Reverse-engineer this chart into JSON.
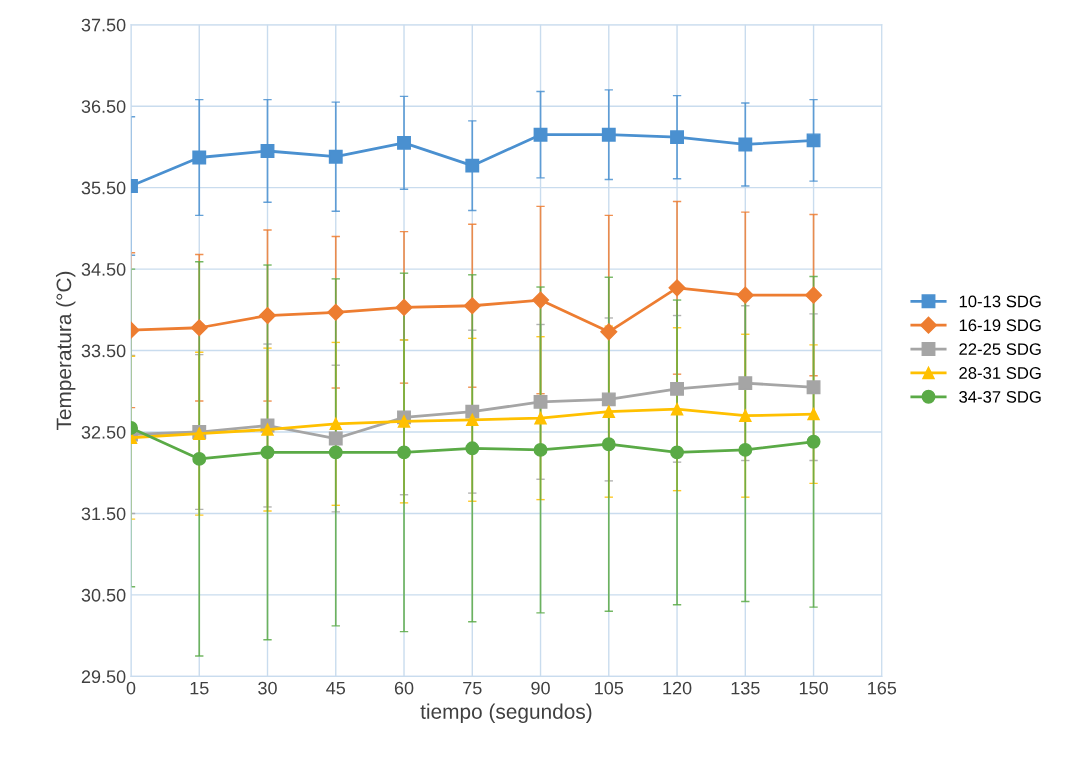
{
  "chart_data": {
    "type": "line",
    "xlabel": "tiempo (segundos)",
    "ylabel": "Temperatura (°C)",
    "x": [
      0,
      15,
      30,
      45,
      60,
      75,
      90,
      105,
      120,
      135,
      150
    ],
    "xlim": [
      0,
      165
    ],
    "xticks": [
      0,
      15,
      30,
      45,
      60,
      75,
      90,
      105,
      120,
      135,
      150,
      165
    ],
    "ylim": [
      29.5,
      37.5
    ],
    "yticks": [
      {
        "value": 29.5,
        "label": "29.50"
      },
      {
        "value": 30.5,
        "label": "30.50"
      },
      {
        "value": 31.5,
        "label": "31.50"
      },
      {
        "value": 32.5,
        "label": "32.50"
      },
      {
        "value": 33.5,
        "label": "33.50"
      },
      {
        "value": 34.5,
        "label": "34.50"
      },
      {
        "value": 35.5,
        "label": "35.50"
      },
      {
        "value": 36.5,
        "label": "36.50"
      },
      {
        "value": 37.5,
        "label": "37.50"
      }
    ],
    "grid": true,
    "legend": "right",
    "series": [
      {
        "name": "10-13 SDG",
        "color": "#4a90d0",
        "marker": "square",
        "values": [
          35.52,
          35.87,
          35.95,
          35.88,
          36.05,
          35.77,
          36.15,
          36.15,
          36.12,
          36.03,
          36.08
        ],
        "errors": [
          0.85,
          0.71,
          0.63,
          0.67,
          0.57,
          0.55,
          0.53,
          0.55,
          0.51,
          0.51,
          0.5
        ]
      },
      {
        "name": "16-19 SDG",
        "color": "#ed7d31",
        "marker": "diamond",
        "values": [
          33.75,
          33.78,
          33.93,
          33.97,
          34.03,
          34.05,
          34.12,
          33.73,
          34.27,
          34.18,
          34.18
        ],
        "errors": [
          0.95,
          0.9,
          1.05,
          0.93,
          0.93,
          1.0,
          1.15,
          1.43,
          1.06,
          1.02,
          0.99
        ]
      },
      {
        "name": "22-25 SDG",
        "color": "#a5a5a5",
        "marker": "square",
        "values": [
          32.47,
          32.5,
          32.58,
          32.42,
          32.68,
          32.75,
          32.87,
          32.9,
          33.03,
          33.1,
          33.05
        ],
        "errors": [
          0.97,
          0.95,
          1.0,
          0.9,
          0.95,
          1.0,
          0.95,
          1.0,
          0.9,
          0.95,
          0.9
        ]
      },
      {
        "name": "28-31 SDG",
        "color": "#ffc000",
        "marker": "triangle",
        "values": [
          32.43,
          32.48,
          32.53,
          32.6,
          32.63,
          32.65,
          32.67,
          32.75,
          32.78,
          32.7,
          32.72
        ],
        "errors": [
          1.0,
          1.0,
          1.0,
          1.0,
          1.0,
          1.0,
          1.0,
          1.05,
          1.0,
          1.0,
          0.85
        ]
      },
      {
        "name": "34-37 SDG",
        "color": "#5aaa46",
        "marker": "circle",
        "values": [
          32.55,
          32.17,
          32.25,
          32.25,
          32.25,
          32.3,
          32.28,
          32.35,
          32.25,
          32.28,
          32.38
        ],
        "errors": [
          1.95,
          2.42,
          2.3,
          2.13,
          2.2,
          2.13,
          2.0,
          2.05,
          1.87,
          1.86,
          2.03
        ]
      }
    ]
  }
}
